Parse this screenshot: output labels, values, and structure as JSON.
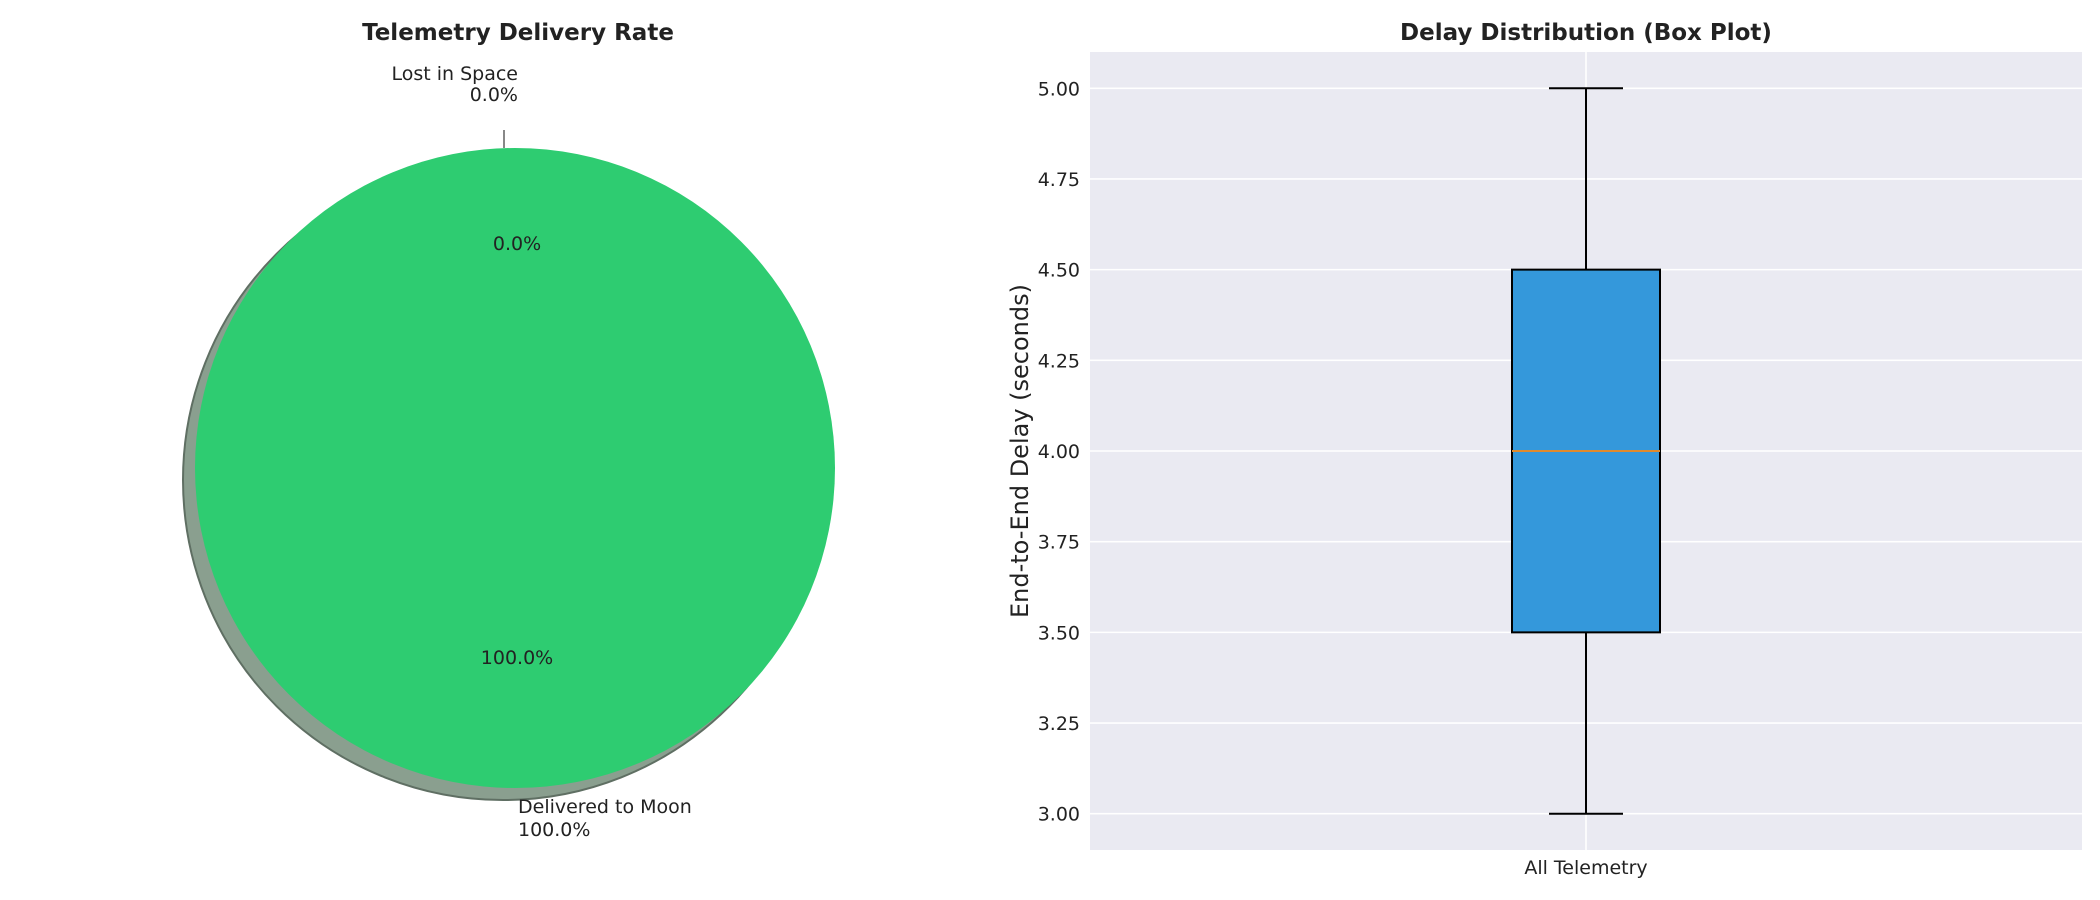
{
  "chart_data": [
    {
      "type": "pie",
      "title": "Telemetry Delivery Rate",
      "slices": [
        {
          "label": "Delivered to Moon",
          "value": 100.0,
          "pct_label": "100.0%",
          "color": "#2ecc71",
          "explode": true,
          "shadow": true
        },
        {
          "label": "Lost in Space",
          "value": 0.0,
          "pct_label": "0.0%",
          "color": "#e74c3c"
        }
      ]
    },
    {
      "type": "box",
      "title": "Delay Distribution (Box Plot)",
      "xlabel": "",
      "ylabel": "End-to-End Delay (seconds)",
      "ylim": [
        2.9,
        5.1
      ],
      "yticks": [
        3.0,
        3.25,
        3.5,
        3.75,
        4.0,
        4.25,
        4.5,
        4.75,
        5.0
      ],
      "ytick_labels": [
        "3.00",
        "3.25",
        "3.50",
        "3.75",
        "4.00",
        "4.25",
        "4.50",
        "4.75",
        "5.00"
      ],
      "categories": [
        "All Telemetry"
      ],
      "boxes": [
        {
          "name": "All Telemetry",
          "min": 3.0,
          "q1": 3.5,
          "median": 4.0,
          "q3": 4.5,
          "max": 5.0,
          "fill": "#3498db",
          "median_color": "#e08a2c"
        }
      ],
      "grid": true,
      "background": "#eaeaf2"
    }
  ]
}
